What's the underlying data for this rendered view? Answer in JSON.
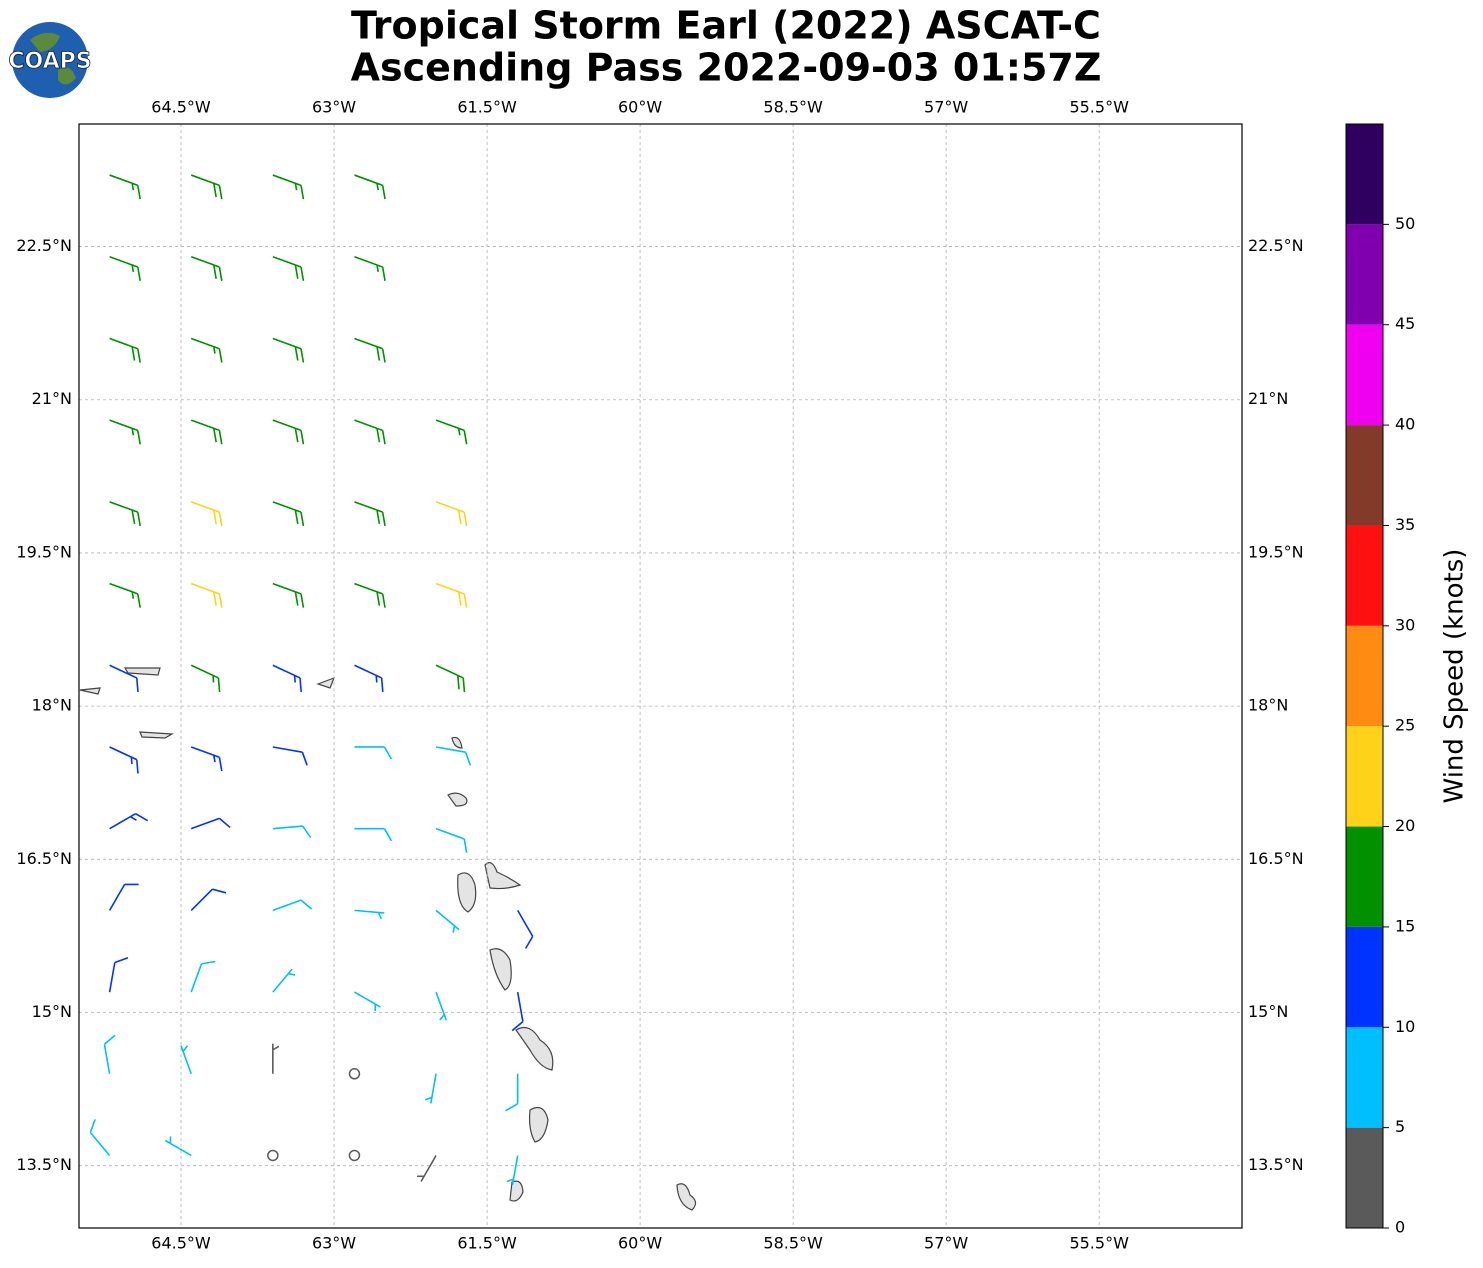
{
  "chart_data": {
    "type": "barbs",
    "title": "Tropical Storm Earl (2022) ASCAT-C",
    "subtitle": "Ascending Pass 2022-09-03 01:57Z",
    "logo_text": "COAPS",
    "xlim": [
      -65.5,
      -54.1
    ],
    "ylim": [
      12.89,
      23.7
    ],
    "xticks": [
      {
        "value": -64.5,
        "label": "64.5°W"
      },
      {
        "value": -63,
        "label": "63°W"
      },
      {
        "value": -61.5,
        "label": "61.5°W"
      },
      {
        "value": -60,
        "label": "60°W"
      },
      {
        "value": -58.5,
        "label": "58.5°W"
      },
      {
        "value": -57,
        "label": "57°W"
      },
      {
        "value": -55.5,
        "label": "55.5°W"
      }
    ],
    "yticks": [
      {
        "value": 13.5,
        "label": "13.5°N"
      },
      {
        "value": 15,
        "label": "15°N"
      },
      {
        "value": 16.5,
        "label": "16.5°N"
      },
      {
        "value": 18,
        "label": "18°N"
      },
      {
        "value": 19.5,
        "label": "19.5°N"
      },
      {
        "value": 21,
        "label": "21°N"
      },
      {
        "value": 22.5,
        "label": "22.5°N"
      }
    ],
    "grid": true,
    "colorbar": {
      "label": "Wind Speed (knots)",
      "lim": [
        0,
        55
      ],
      "ticks": [
        0,
        5,
        10,
        15,
        20,
        25,
        30,
        35,
        40,
        45,
        50
      ],
      "colors": [
        "#5a5a5a",
        "#00bfff",
        "#0033ff",
        "#009000",
        "#ffd21a",
        "#ff8c10",
        "#ff1010",
        "#833a28",
        "#f000f0",
        "#8000b0",
        "#300060"
      ]
    },
    "barbs": {
      "lon": [
        -65.2,
        -64.4,
        -63.6,
        -62.8,
        -65.2,
        -64.4,
        -63.6,
        -62.8,
        -65.2,
        -64.4,
        -63.6,
        -62.8,
        -65.2,
        -64.4,
        -63.6,
        -62.8,
        -62.0,
        -65.2,
        -64.4,
        -63.6,
        -62.8,
        -62.0,
        -65.2,
        -64.4,
        -63.6,
        -62.8,
        -62.0,
        -65.2,
        -64.4,
        -63.6,
        -62.8,
        -62.0,
        -65.2,
        -64.4,
        -63.6,
        -62.8,
        -62.0,
        -65.2,
        -64.4,
        -63.6,
        -62.8,
        -62.0,
        -65.2,
        -64.4,
        -63.6,
        -62.8,
        -62.0,
        -61.2,
        -65.2,
        -64.4,
        -63.6,
        -62.8,
        -62.0,
        -61.2,
        -65.2,
        -64.4,
        -63.6,
        -62.8,
        -62.0,
        -61.2,
        -65.2,
        -64.4,
        -63.6,
        -62.8,
        -62.0,
        -61.2
      ],
      "lat": [
        23.2,
        23.2,
        23.2,
        23.2,
        22.4,
        22.4,
        22.4,
        22.4,
        21.6,
        21.6,
        21.6,
        21.6,
        20.8,
        20.8,
        20.8,
        20.8,
        20.8,
        20.0,
        20.0,
        20.0,
        20.0,
        20.0,
        19.2,
        19.2,
        19.2,
        19.2,
        19.2,
        18.4,
        18.4,
        18.4,
        18.4,
        18.4,
        17.6,
        17.6,
        17.6,
        17.6,
        17.6,
        16.8,
        16.8,
        16.8,
        16.8,
        16.8,
        16.0,
        16.0,
        16.0,
        16.0,
        16.0,
        16.0,
        15.2,
        15.2,
        15.2,
        15.2,
        15.2,
        15.2,
        14.4,
        14.4,
        14.4,
        14.4,
        14.4,
        14.4,
        13.6,
        13.6,
        13.6,
        13.6,
        13.6,
        13.6
      ],
      "speed": [
        17,
        18,
        17,
        17,
        17,
        18,
        18,
        17,
        18,
        17,
        18,
        18,
        17,
        18,
        18,
        18,
        17,
        18,
        22,
        18,
        18,
        22,
        17,
        22,
        18,
        18,
        22,
        12,
        17,
        13,
        13,
        18,
        13,
        13,
        12,
        8,
        8,
        13,
        12,
        8,
        8,
        8,
        12,
        11,
        8,
        7,
        6,
        12,
        11,
        8,
        7,
        6,
        7,
        12,
        8,
        7,
        3,
        2,
        6,
        8,
        8,
        7,
        2,
        1,
        3,
        7
      ],
      "direction": [
        110,
        110,
        110,
        110,
        110,
        110,
        110,
        110,
        110,
        110,
        110,
        110,
        110,
        110,
        110,
        110,
        110,
        110,
        110,
        110,
        110,
        110,
        110,
        110,
        110,
        110,
        110,
        115,
        115,
        115,
        115,
        115,
        115,
        110,
        100,
        90,
        100,
        60,
        70,
        85,
        90,
        110,
        30,
        45,
        70,
        95,
        130,
        150,
        10,
        20,
        40,
        120,
        160,
        170,
        350,
        340,
        0,
        200,
        190,
        180,
        320,
        300,
        250,
        230,
        210,
        190
      ]
    }
  }
}
